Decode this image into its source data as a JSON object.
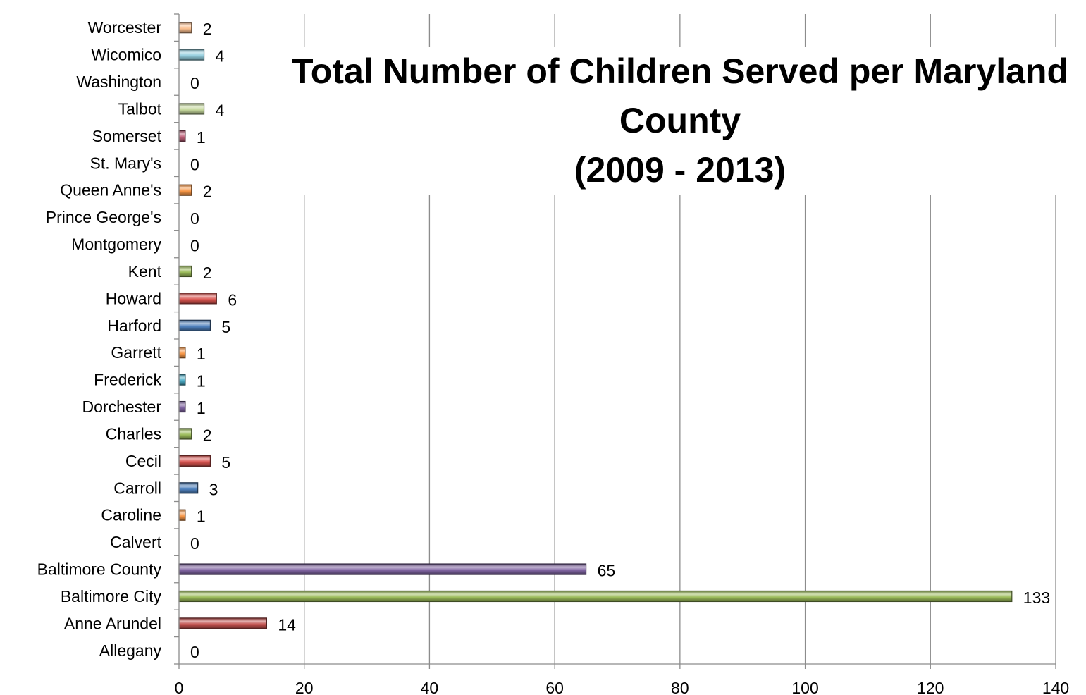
{
  "chart_data": {
    "type": "bar",
    "orientation": "horizontal",
    "title_lines": [
      "Total Number of Children Served per Maryland",
      "County",
      "(2009 - 2013)"
    ],
    "xlabel": "",
    "ylabel": "",
    "xlim": [
      0,
      140
    ],
    "x_ticks": [
      "0",
      "20",
      "40",
      "60",
      "80",
      "100",
      "120",
      "140"
    ],
    "grid": "vertical",
    "legend": "none",
    "categories": [
      "Allegany",
      "Anne Arundel",
      "Baltimore City",
      "Baltimore County",
      "Calvert",
      "Caroline",
      "Carroll",
      "Cecil",
      "Charles",
      "Dorchester",
      "Frederick",
      "Garrett",
      "Harford",
      "Howard",
      "Kent",
      "Montgomery",
      "Prince George's",
      "Queen Anne's",
      "St. Mary's",
      "Somerset",
      "Talbot",
      "Washington",
      "Wicomico",
      "Worcester"
    ],
    "values": [
      0,
      14,
      133,
      65,
      0,
      1,
      3,
      5,
      2,
      1,
      1,
      1,
      5,
      6,
      2,
      0,
      0,
      2,
      0,
      1,
      4,
      0,
      4,
      2
    ],
    "value_labels": [
      "0",
      "14",
      "133",
      "65",
      "0",
      "1",
      "3",
      "5",
      "2",
      "1",
      "1",
      "1",
      "5",
      "6",
      "2",
      "0",
      "0",
      "2",
      "0",
      "1",
      "4",
      "0",
      "4",
      "2"
    ],
    "colors": [
      "#4a7ebb",
      "#c0504d",
      "#9bbb59",
      "#8064a2",
      "#4bacc6",
      "#f79646",
      "#4f81bd",
      "#d9534f",
      "#9bbb59",
      "#8064a2",
      "#4bacc6",
      "#f79646",
      "#4f81bd",
      "#d9534f",
      "#9bbb59",
      "#8064a2",
      "#4bacc6",
      "#f79646",
      "#4f81bd",
      "#c0607a",
      "#c4d79b",
      "#8064a2",
      "#93cddd",
      "#fabf8f"
    ]
  }
}
